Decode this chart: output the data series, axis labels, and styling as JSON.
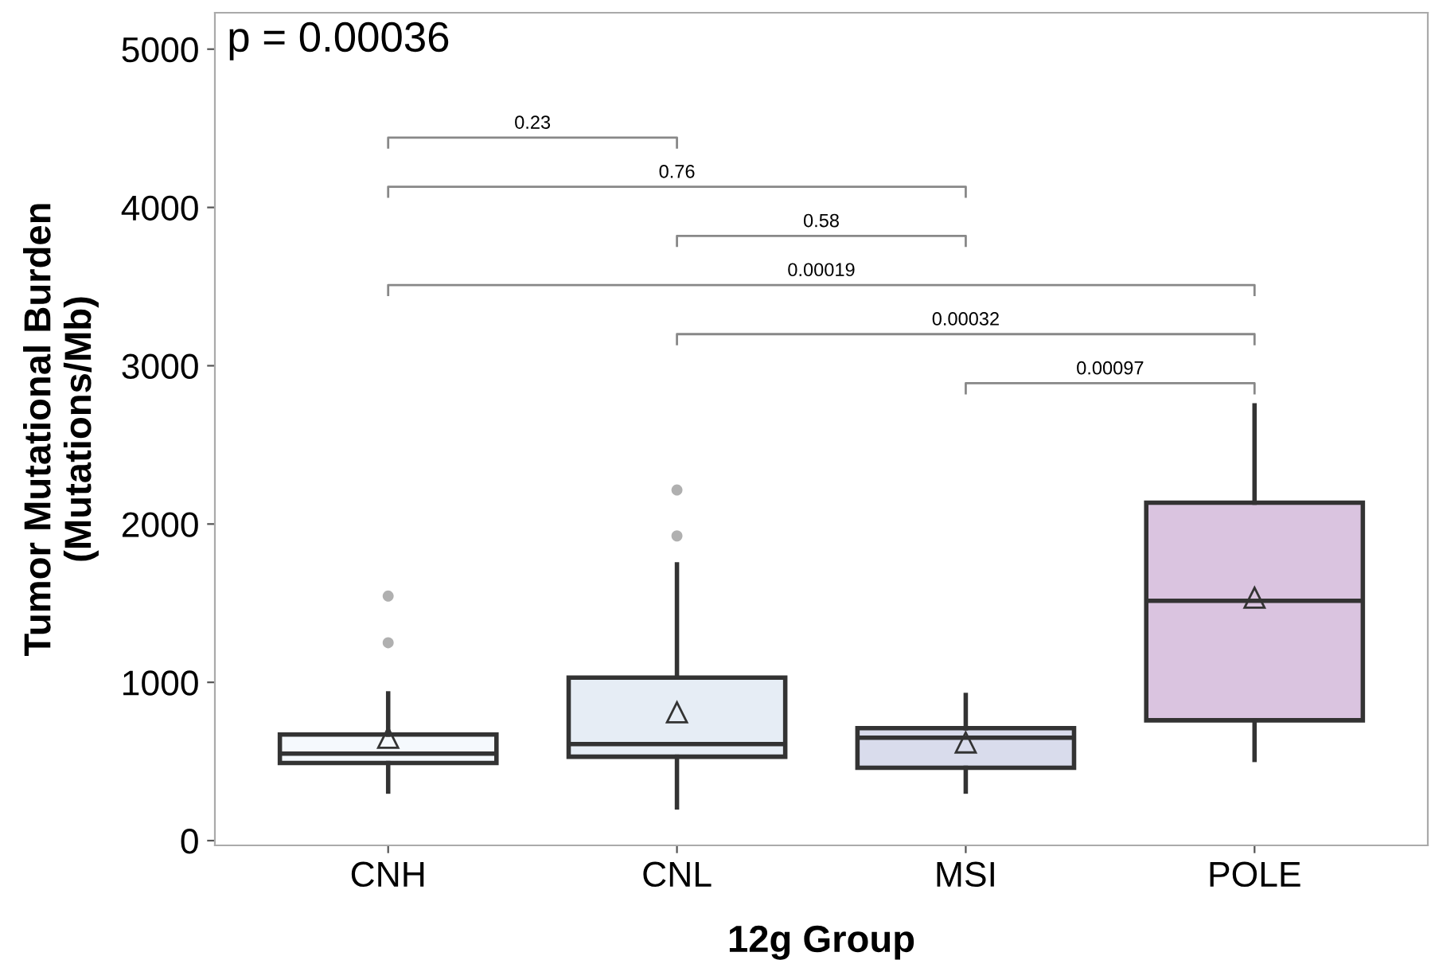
{
  "chart_data": {
    "type": "box",
    "xlabel": "12g Group",
    "ylabel": "Tumor Mutational Burden\n(Mutations/Mb)",
    "categories": [
      "CNH",
      "CNL",
      "MSI",
      "POLE"
    ],
    "colors": [
      "#f5f9fd",
      "#e6edf5",
      "#d9dcec",
      "#dac4e0"
    ],
    "boxes": [
      {
        "low": 310,
        "q1": 490,
        "median": 550,
        "q3": 670,
        "high": 930,
        "mean": 650,
        "outliers": [
          1250,
          1545
        ]
      },
      {
        "low": 210,
        "q1": 530,
        "median": 610,
        "q3": 1030,
        "high": 1745,
        "mean": 810,
        "outliers": [
          1925,
          2215
        ]
      },
      {
        "low": 310,
        "q1": 460,
        "median": 650,
        "q3": 710,
        "high": 920,
        "mean": 620
      },
      {
        "low": 510,
        "q1": 760,
        "median": 1515,
        "q3": 2135,
        "high": 2750,
        "mean": 1535
      }
    ],
    "ylim": [
      -30,
      5230
    ],
    "yticks": [
      0,
      1000,
      2000,
      3000,
      4000,
      5000
    ],
    "grid": false,
    "annotations": [
      "p = 0.00036",
      "0.23",
      "0.76",
      "0.58",
      "0.00019",
      "0.00032",
      "0.00097"
    ]
  }
}
